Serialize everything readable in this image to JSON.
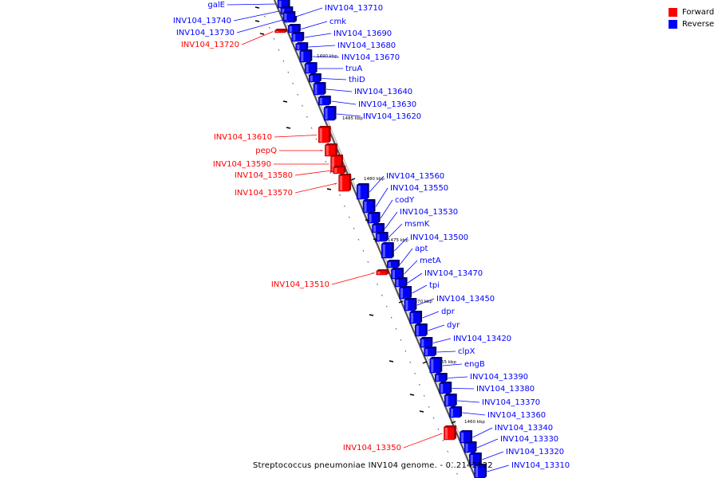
{
  "title": "Streptococcus pneumoniae INV104 genome. - 0..2142122",
  "legend": [
    {
      "label": "Forward",
      "color": "#ff0000"
    },
    {
      "label": "Reverse",
      "color": "#0000ff"
    }
  ],
  "colors": {
    "forward": "#ff0000",
    "reverse": "#0000ff",
    "backbone": "#888888"
  },
  "ticks": [
    {
      "label": "1490 kbp"
    },
    {
      "label": "1485 kbp"
    },
    {
      "label": "1480 kbp"
    },
    {
      "label": "1475 kbp"
    },
    {
      "label": "1470 kbp"
    },
    {
      "label": "1465 kbp"
    },
    {
      "label": "1460 kbp"
    }
  ],
  "genes": [
    {
      "label": "galE",
      "strand": "reverse"
    },
    {
      "label": "INV104_13740",
      "strand": "reverse"
    },
    {
      "label": "INV104_13730",
      "strand": "reverse"
    },
    {
      "label": "INV104_13720",
      "strand": "forward"
    },
    {
      "label": "INV104_13710",
      "strand": "reverse"
    },
    {
      "label": "cmk",
      "strand": "reverse"
    },
    {
      "label": "INV104_13690",
      "strand": "reverse"
    },
    {
      "label": "INV104_13680",
      "strand": "reverse"
    },
    {
      "label": "INV104_13670",
      "strand": "reverse"
    },
    {
      "label": "truA",
      "strand": "reverse"
    },
    {
      "label": "thiD",
      "strand": "reverse"
    },
    {
      "label": "INV104_13640",
      "strand": "reverse"
    },
    {
      "label": "INV104_13630",
      "strand": "reverse"
    },
    {
      "label": "INV104_13620",
      "strand": "reverse"
    },
    {
      "label": "INV104_13610",
      "strand": "forward"
    },
    {
      "label": "pepQ",
      "strand": "forward"
    },
    {
      "label": "INV104_13590",
      "strand": "forward"
    },
    {
      "label": "INV104_13580",
      "strand": "forward"
    },
    {
      "label": "INV104_13570",
      "strand": "forward"
    },
    {
      "label": "INV104_13560",
      "strand": "reverse"
    },
    {
      "label": "INV104_13550",
      "strand": "reverse"
    },
    {
      "label": "codY",
      "strand": "reverse"
    },
    {
      "label": "INV104_13530",
      "strand": "reverse"
    },
    {
      "label": "msmK",
      "strand": "reverse"
    },
    {
      "label": "INV104_13500",
      "strand": "reverse"
    },
    {
      "label": "apt",
      "strand": "reverse"
    },
    {
      "label": "metA",
      "strand": "reverse"
    },
    {
      "label": "INV104_13510",
      "strand": "forward"
    },
    {
      "label": "INV104_13470",
      "strand": "reverse"
    },
    {
      "label": "tpi",
      "strand": "reverse"
    },
    {
      "label": "INV104_13450",
      "strand": "reverse"
    },
    {
      "label": "dpr",
      "strand": "reverse"
    },
    {
      "label": "dyr",
      "strand": "reverse"
    },
    {
      "label": "INV104_13420",
      "strand": "reverse"
    },
    {
      "label": "clpX",
      "strand": "reverse"
    },
    {
      "label": "engB",
      "strand": "reverse"
    },
    {
      "label": "INV104_13390",
      "strand": "reverse"
    },
    {
      "label": "INV104_13380",
      "strand": "reverse"
    },
    {
      "label": "INV104_13370",
      "strand": "reverse"
    },
    {
      "label": "INV104_13360",
      "strand": "reverse"
    },
    {
      "label": "INV104_13350",
      "strand": "forward"
    },
    {
      "label": "INV104_13340",
      "strand": "reverse"
    },
    {
      "label": "INV104_13330",
      "strand": "reverse"
    },
    {
      "label": "INV104_13320",
      "strand": "reverse"
    },
    {
      "label": "INV104_13310",
      "strand": "reverse"
    }
  ]
}
